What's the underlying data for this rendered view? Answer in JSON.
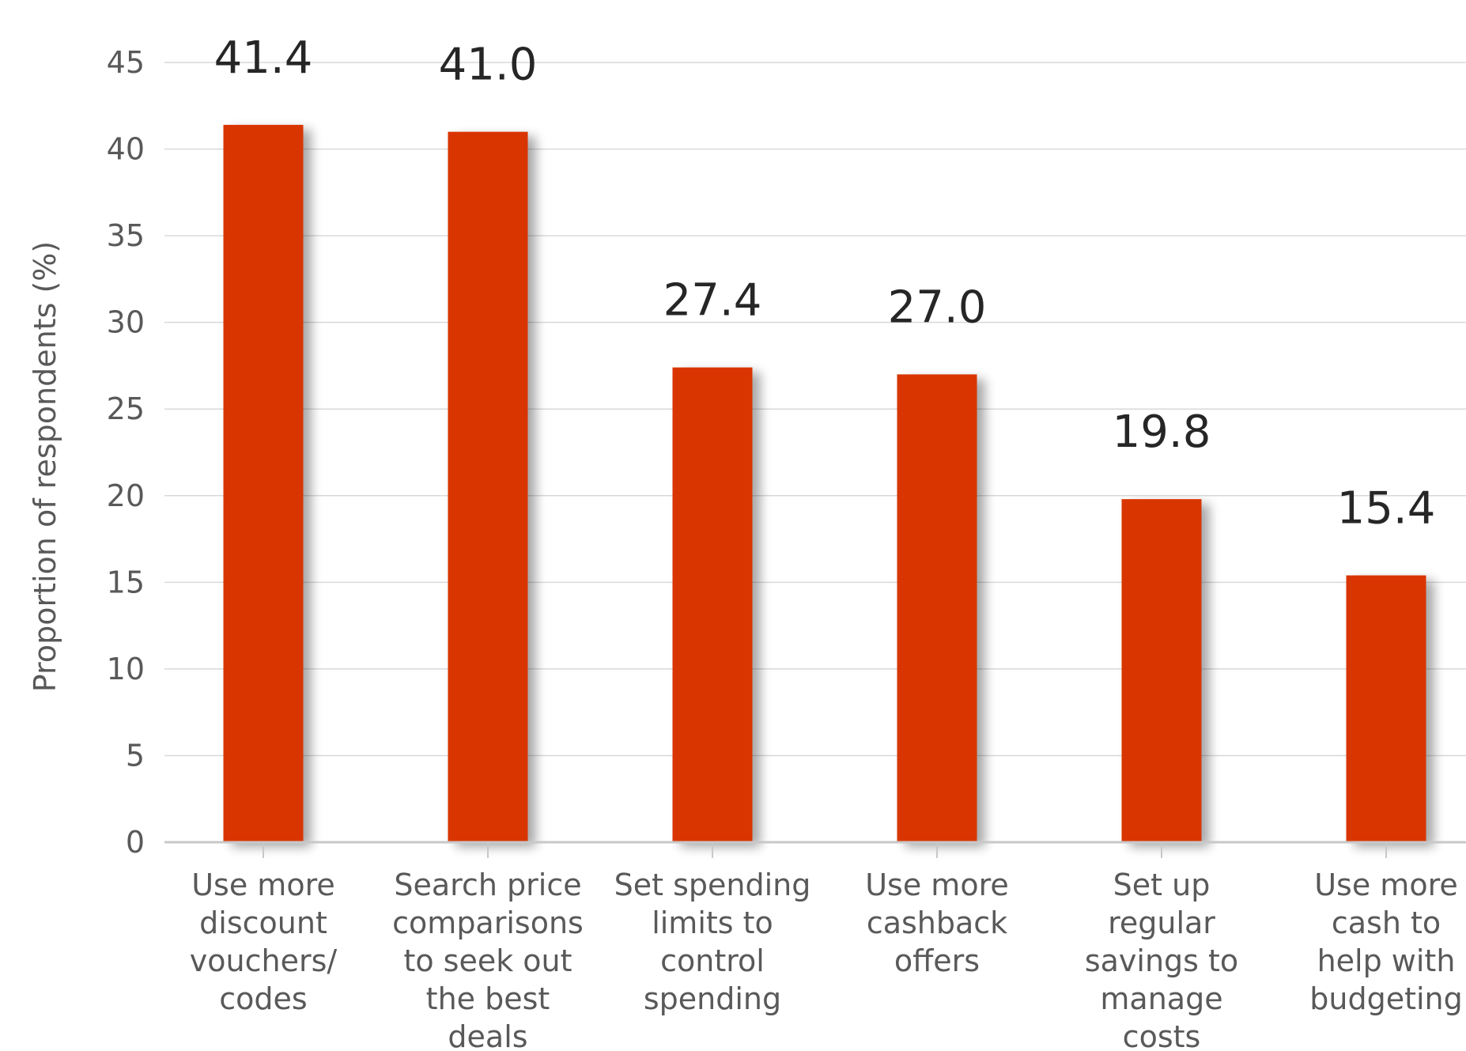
{
  "chart_data": {
    "type": "bar",
    "title": "",
    "xlabel": "",
    "ylabel": "Proportion of respondents (%)",
    "ylim": [
      0,
      45
    ],
    "yticks": [
      0,
      5,
      10,
      15,
      20,
      25,
      30,
      35,
      40,
      45
    ],
    "grid": true,
    "bar_color": "#d93600",
    "categories": [
      [
        "Use more",
        "discount",
        "vouchers/",
        "codes"
      ],
      [
        "Search price",
        "comparisons",
        "to seek out",
        "the best",
        "deals"
      ],
      [
        "Set spending",
        "limits to",
        "control",
        "spending"
      ],
      [
        "Use more",
        "cashback",
        "offers"
      ],
      [
        "Set up",
        "regular",
        "savings to",
        "manage",
        "costs"
      ],
      [
        "Use more",
        "cash to",
        "help with",
        "budgeting"
      ]
    ],
    "values": [
      41.4,
      41.0,
      27.4,
      27.0,
      19.8,
      15.4
    ],
    "value_labels": [
      "41.4",
      "41.0",
      "27.4",
      "27.0",
      "19.8",
      "15.4"
    ]
  }
}
